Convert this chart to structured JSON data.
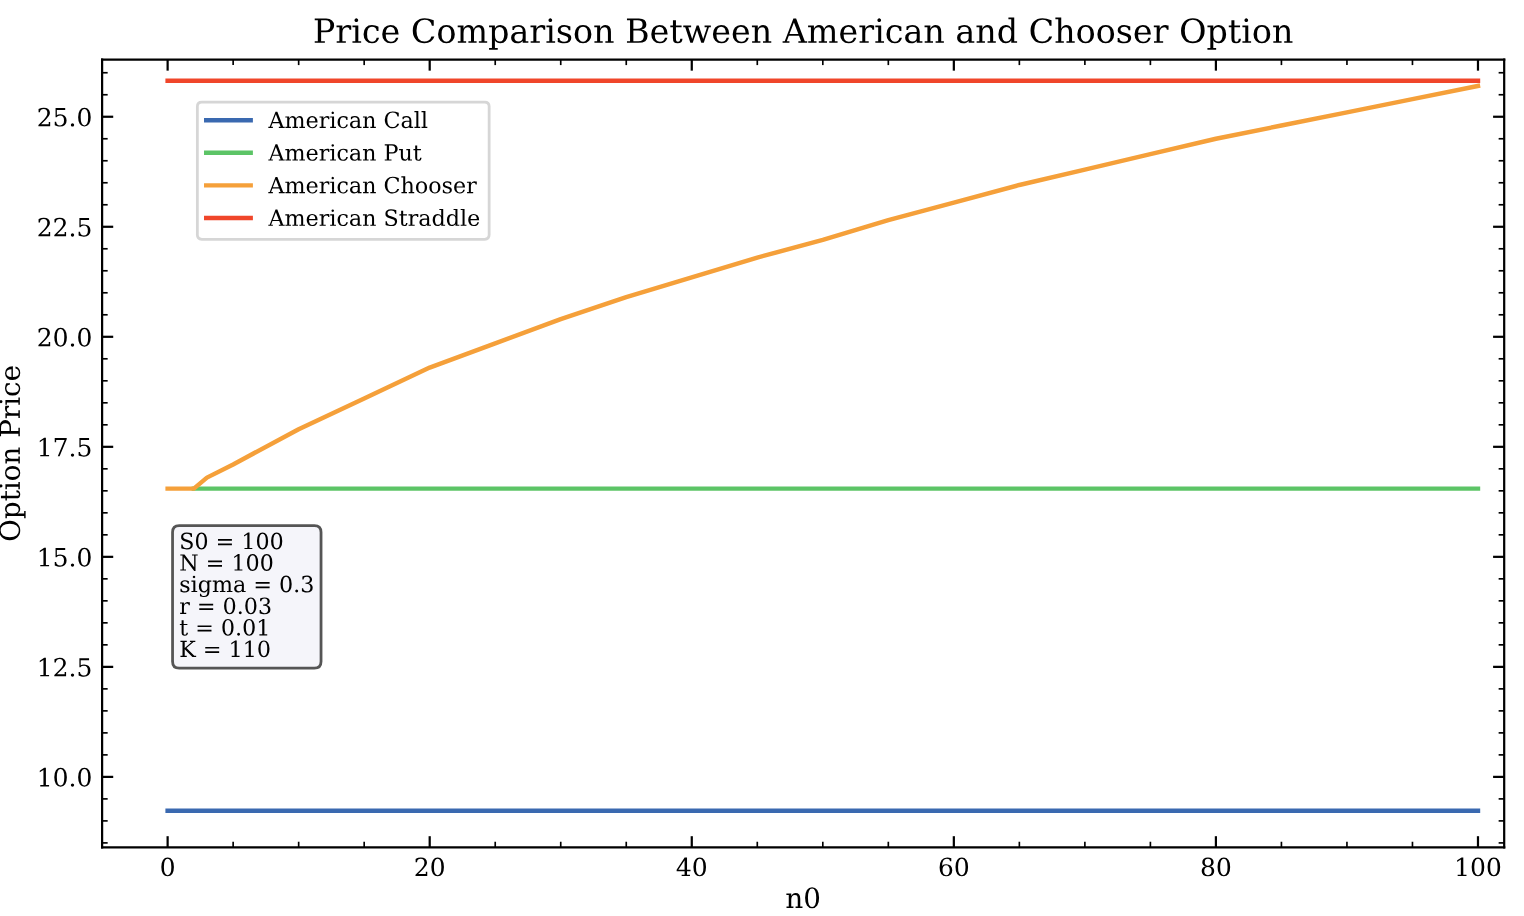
{
  "chart_data": {
    "type": "line",
    "title": "Price Comparison Between American and Chooser Option",
    "xlabel": "n0",
    "ylabel": "Option Price",
    "x": [
      0,
      2,
      3,
      5,
      10,
      15,
      20,
      25,
      30,
      35,
      40,
      45,
      50,
      55,
      60,
      65,
      70,
      75,
      80,
      85,
      90,
      95,
      100
    ],
    "series": [
      {
        "name": "American Call",
        "color": "#3a69b0",
        "values": [
          9.23,
          9.23,
          9.23,
          9.23,
          9.23,
          9.23,
          9.23,
          9.23,
          9.23,
          9.23,
          9.23,
          9.23,
          9.23,
          9.23,
          9.23,
          9.23,
          9.23,
          9.23,
          9.23,
          9.23,
          9.23,
          9.23,
          9.23
        ]
      },
      {
        "name": "American Put",
        "color": "#5cc466",
        "values": [
          null,
          16.55,
          16.55,
          16.55,
          16.55,
          16.55,
          16.55,
          16.55,
          16.55,
          16.55,
          16.55,
          16.55,
          16.55,
          16.55,
          16.55,
          16.55,
          16.55,
          16.55,
          16.55,
          16.55,
          16.55,
          16.55,
          16.55
        ]
      },
      {
        "name": "American Chooser",
        "color": "#f5a03a",
        "values": [
          16.55,
          16.55,
          16.8,
          17.1,
          17.9,
          18.6,
          19.3,
          19.85,
          20.4,
          20.9,
          21.35,
          21.8,
          22.2,
          22.65,
          23.05,
          23.45,
          23.8,
          24.15,
          24.5,
          24.8,
          25.1,
          25.4,
          25.7
        ]
      },
      {
        "name": "American Straddle",
        "color": "#f0462a",
        "values": [
          25.82,
          25.82,
          25.82,
          25.82,
          25.82,
          25.82,
          25.82,
          25.82,
          25.82,
          25.82,
          25.82,
          25.82,
          25.82,
          25.82,
          25.82,
          25.82,
          25.82,
          25.82,
          25.82,
          25.82,
          25.82,
          25.82,
          25.82
        ]
      }
    ],
    "xlim": [
      -5,
      102
    ],
    "xticks": [
      0,
      20,
      40,
      60,
      80,
      100
    ],
    "ylim": [
      8.4,
      26.3
    ],
    "yticks": [
      {
        "value": 10,
        "label": "10.0"
      },
      {
        "value": 12.5,
        "label": "12.5"
      },
      {
        "value": 15,
        "label": "15.0"
      },
      {
        "value": 17.5,
        "label": "17.5"
      },
      {
        "value": 20,
        "label": "20.0"
      },
      {
        "value": 22.5,
        "label": "22.5"
      },
      {
        "value": 25,
        "label": "25.0"
      }
    ],
    "annotations": [
      "S0 = 100\nN = 100\nsigma = 0.3\nr = 0.03\nt = 0.01\nK = 110"
    ],
    "legend": "top left",
    "grid": false,
    "marker": "none",
    "line_style": "solid"
  }
}
